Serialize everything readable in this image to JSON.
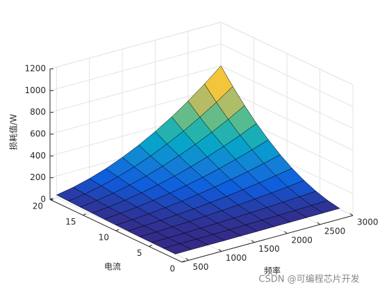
{
  "chart_data": {
    "type": "surface",
    "xlabel": "频率",
    "ylabel": "电流",
    "zlabel": "损耗值/W",
    "x": [
      500,
      750,
      1000,
      1250,
      1500,
      1750,
      2000,
      2250,
      2500,
      2750,
      3000
    ],
    "y": [
      2,
      3.8,
      5.6,
      7.4,
      9.2,
      11,
      12.8,
      14.6,
      16.4,
      18.2,
      20
    ],
    "z": [
      [
        0,
        1,
        1,
        1,
        2,
        3,
        4,
        5,
        6,
        7,
        8
      ],
      [
        1,
        2,
        3,
        5,
        7,
        10,
        13,
        16,
        20,
        24,
        29
      ],
      [
        2,
        4,
        7,
        11,
        16,
        22,
        28,
        36,
        44,
        53,
        63
      ],
      [
        3,
        7,
        13,
        20,
        28,
        38,
        49,
        62,
        76,
        92,
        110
      ],
      [
        5,
        12,
        20,
        31,
        44,
        59,
        76,
        96,
        118,
        143,
        169
      ],
      [
        8,
        16,
        28,
        44,
        62,
        84,
        109,
        137,
        169,
        204,
        242
      ],
      [
        10,
        22,
        39,
        59,
        84,
        114,
        148,
        186,
        229,
        276,
        328
      ],
      [
        14,
        29,
        50,
        77,
        110,
        148,
        192,
        242,
        298,
        359,
        426
      ],
      [
        17,
        37,
        63,
        97,
        138,
        187,
        243,
        305,
        376,
        453,
        538
      ],
      [
        21,
        45,
        78,
        120,
        170,
        230,
        299,
        376,
        463,
        558,
        662
      ],
      [
        26,
        54,
        94,
        144,
        206,
        278,
        361,
        454,
        559,
        674,
        800
      ]
    ],
    "xlim": [
      400,
      3000
    ],
    "xticks": [
      500,
      1000,
      1500,
      2000,
      2500,
      3000
    ],
    "ylim": [
      0,
      20
    ],
    "yticks": [
      0,
      5,
      10,
      15,
      20
    ],
    "zlim": [
      0,
      1200
    ],
    "zticks": [
      0,
      200,
      400,
      600,
      800,
      1000,
      1200
    ],
    "grid": true,
    "edge_color": "#000000",
    "colormap": [
      "#352a87",
      "#0f5cdd",
      "#1481d6",
      "#06a4ca",
      "#2eb7a4",
      "#87bf77",
      "#d1bb59",
      "#fec832",
      "#f9fb0e"
    ]
  },
  "watermark": "CSDN @可编程芯片开发"
}
